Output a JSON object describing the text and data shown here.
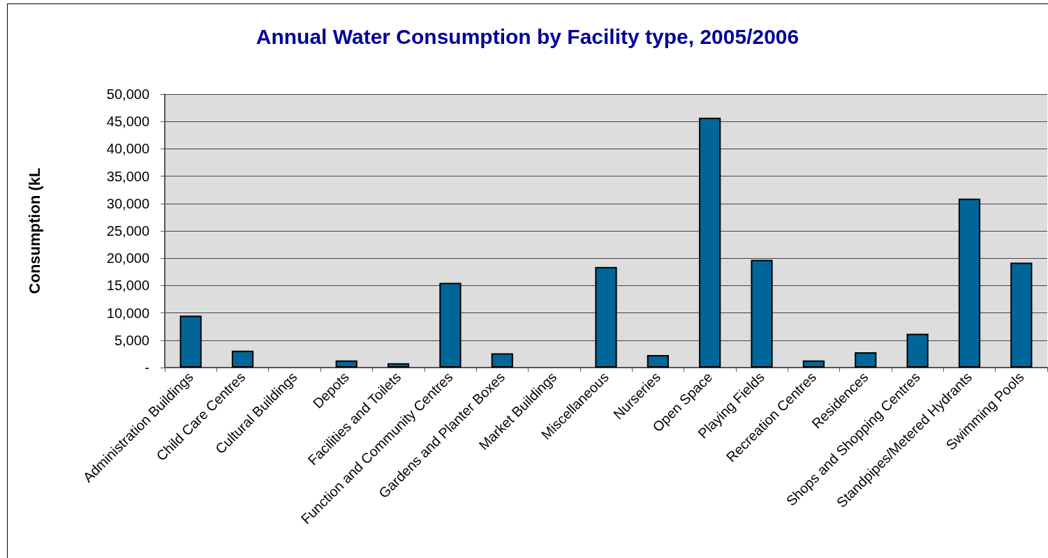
{
  "chart_data": {
    "type": "bar",
    "title": "Annual Water Consumption by Facility type, 2005/2006",
    "ylabel": "Consumption (kL",
    "categories": [
      "Administration Buildings",
      "Child Care Centres",
      "Cultural Buildings",
      "Depots",
      "Facilities and Toilets",
      "Function and Community Centres",
      "Gardens and Planter Boxes",
      "Market Buildings",
      "Miscellaneous",
      "Nurseries",
      "Open Space",
      "Playing Fields",
      "Recreation Centres",
      "Residences",
      "Shops and Shopping Centres",
      "Standpipes/Metered Hydrants",
      "Swimming Pools"
    ],
    "values": [
      9500,
      3100,
      0,
      1300,
      800,
      15500,
      2600,
      0,
      18400,
      2300,
      45700,
      19700,
      1300,
      2800,
      6200,
      30900,
      19200
    ],
    "color": "#006699",
    "ylim": [
      0,
      50000
    ],
    "yticks": [
      {
        "value": 0,
        "label": "-"
      },
      {
        "value": 5000,
        "label": "5,000"
      },
      {
        "value": 10000,
        "label": "10,000"
      },
      {
        "value": 15000,
        "label": "15,000"
      },
      {
        "value": 20000,
        "label": "20,000"
      },
      {
        "value": 25000,
        "label": "25,000"
      },
      {
        "value": 30000,
        "label": "30,000"
      },
      {
        "value": 35000,
        "label": "35,000"
      },
      {
        "value": 40000,
        "label": "40,000"
      },
      {
        "value": 45000,
        "label": "45,000"
      },
      {
        "value": 50000,
        "label": "50,000"
      }
    ],
    "grid": "y"
  }
}
